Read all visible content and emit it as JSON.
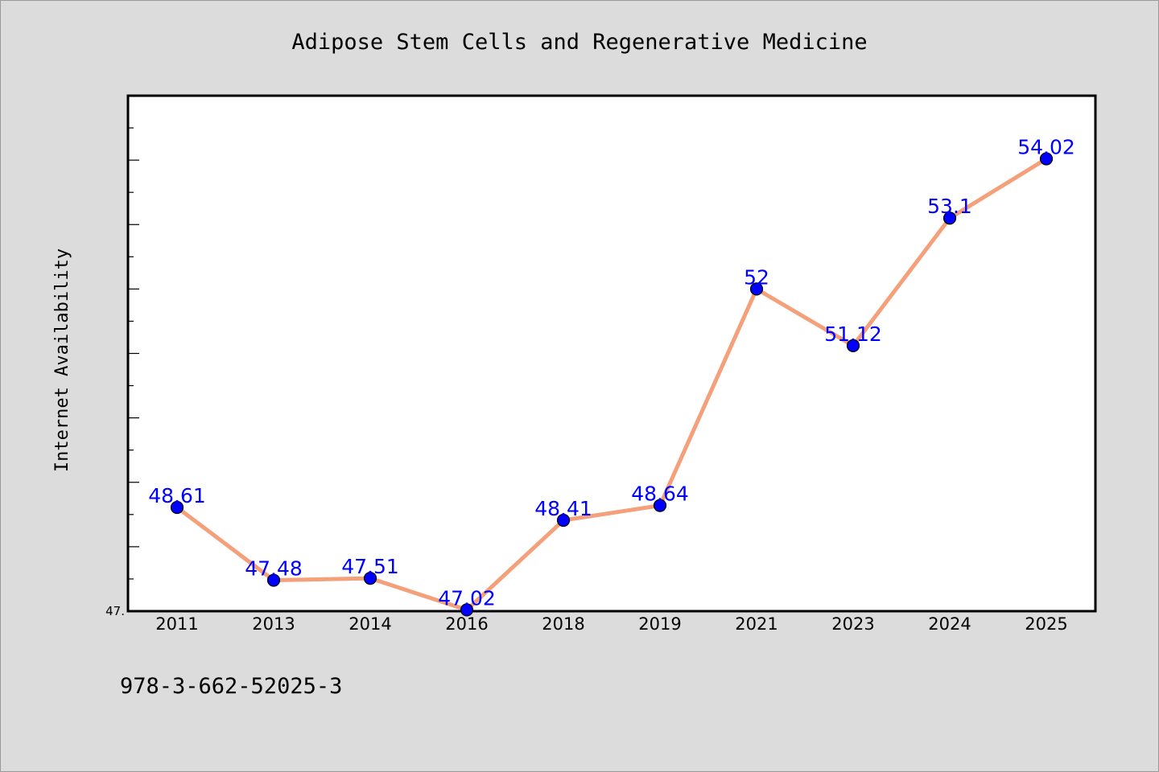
{
  "chart_data": {
    "type": "line",
    "title": "Adipose Stem Cells and Regenerative Medicine",
    "xlabel": "",
    "ylabel": "Internet Availability",
    "categories": [
      "2011",
      "2013",
      "2014",
      "2016",
      "2018",
      "2019",
      "2021",
      "2023",
      "2024",
      "2025"
    ],
    "series": [
      {
        "values": [
          48.61,
          47.48,
          47.51,
          47.02,
          48.41,
          48.64,
          52,
          51.12,
          53.1,
          54.02
        ],
        "data_labels": [
          "48.61",
          "47.48",
          "47.51",
          "47.02",
          "48.41",
          "48.64",
          "52",
          "51.12",
          "53.1",
          "54.02"
        ]
      }
    ],
    "y_tick_labels": [
      {
        "value": 47,
        "label": "47."
      }
    ],
    "ylim": [
      47,
      55
    ],
    "grid": false,
    "legend": "none",
    "colors": {
      "line": "#f4a07a",
      "marker": "#0000ff",
      "data_label": "#0000ff",
      "background": "#dcdcdc",
      "plot_background": "#ffffff"
    }
  },
  "footer": {
    "isbn": "978-3-662-52025-3"
  }
}
